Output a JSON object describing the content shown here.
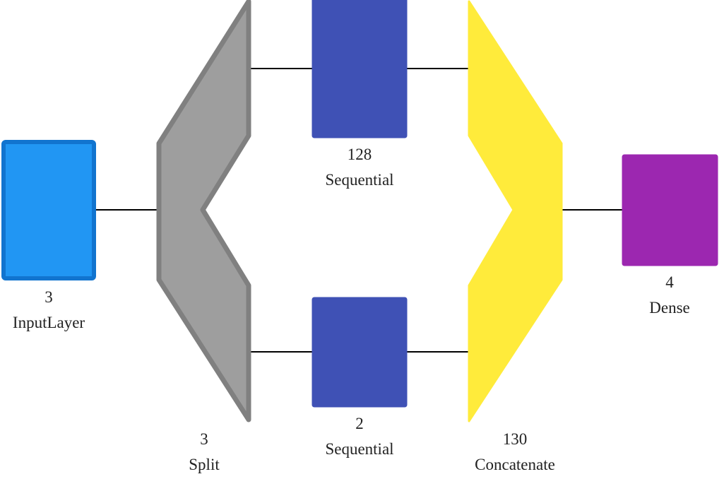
{
  "nodes": [
    {
      "id": "input",
      "units": "3",
      "name": "InputLayer",
      "fill": "#2196F3",
      "stroke": "#1174CF"
    },
    {
      "id": "split",
      "units": "3",
      "name": "Split",
      "fill": "#9E9E9E",
      "stroke": "#808080"
    },
    {
      "id": "seq_top",
      "units": "128",
      "name": "Sequential",
      "fill": "#3F51B5",
      "stroke": "#3F51B5"
    },
    {
      "id": "seq_bottom",
      "units": "2",
      "name": "Sequential",
      "fill": "#3F51B5",
      "stroke": "#3F51B5"
    },
    {
      "id": "concat",
      "units": "130",
      "name": "Concatenate",
      "fill": "#FFEB3B",
      "stroke": "#FFEB3B"
    },
    {
      "id": "dense",
      "units": "4",
      "name": "Dense",
      "fill": "#9C27B0",
      "stroke": "#9C27B0"
    }
  ],
  "edges": [
    {
      "from": "input",
      "to": "split"
    },
    {
      "from": "split",
      "to": "seq_top"
    },
    {
      "from": "split",
      "to": "seq_bottom"
    },
    {
      "from": "seq_top",
      "to": "concat"
    },
    {
      "from": "seq_bottom",
      "to": "concat"
    },
    {
      "from": "concat",
      "to": "dense"
    }
  ],
  "colors": {
    "edge": "#000000",
    "text": "#222222",
    "background": "#FFFFFF"
  }
}
